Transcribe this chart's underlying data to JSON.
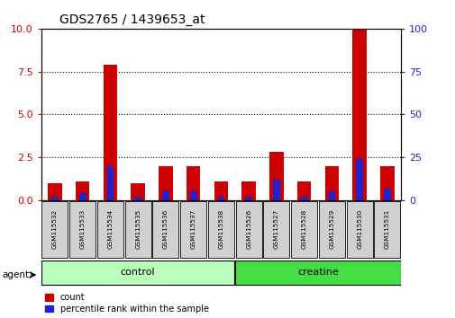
{
  "title": "GDS2765 / 1439653_at",
  "samples": [
    "GSM115532",
    "GSM115533",
    "GSM115534",
    "GSM115535",
    "GSM115536",
    "GSM115537",
    "GSM115538",
    "GSM115526",
    "GSM115527",
    "GSM115528",
    "GSM115529",
    "GSM115530",
    "GSM115531"
  ],
  "count_values": [
    1.0,
    1.1,
    7.9,
    1.0,
    2.0,
    2.0,
    1.1,
    1.1,
    2.8,
    1.1,
    2.0,
    10.0,
    2.0
  ],
  "percentile_values": [
    2.0,
    4.0,
    20.0,
    2.0,
    5.0,
    5.0,
    2.0,
    2.0,
    12.0,
    2.0,
    5.0,
    24.0,
    7.0
  ],
  "groups": [
    {
      "label": "control",
      "start": 0,
      "end": 7,
      "color": "#bbffbb"
    },
    {
      "label": "creatine",
      "start": 7,
      "end": 13,
      "color": "#44dd44"
    }
  ],
  "ylim_left": [
    0,
    10
  ],
  "ylim_right": [
    0,
    100
  ],
  "yticks_left": [
    0,
    2.5,
    5.0,
    7.5,
    10
  ],
  "yticks_right": [
    0,
    25,
    50,
    75,
    100
  ],
  "bar_color": "#cc0000",
  "marker_color": "#2222cc",
  "grid_yticks": [
    2.5,
    5.0,
    7.5
  ],
  "bar_width": 0.5,
  "blue_bar_width": 0.25,
  "agent_label": "agent",
  "legend_count": "count",
  "legend_pct": "percentile rank within the sample",
  "bg_color": "#ffffff",
  "plot_bg": "#ffffff",
  "tick_color_left": "#cc0000",
  "tick_color_right": "#2222cc",
  "label_box_color": "#cccccc",
  "control_color": "#bbffbb",
  "creatine_color": "#44dd44"
}
